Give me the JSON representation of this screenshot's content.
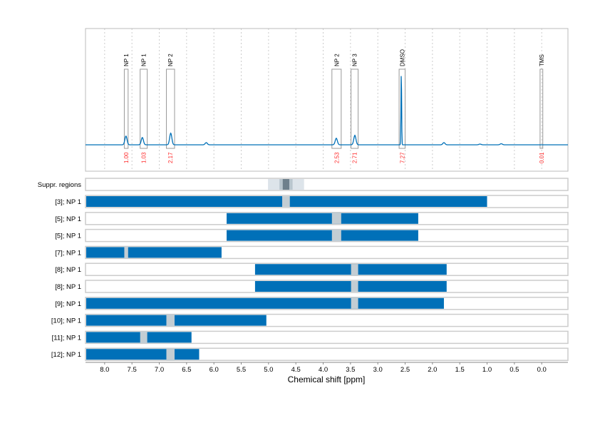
{
  "chart_data": {
    "type": "nmr-spectrum-with-range-bars",
    "xlabel": "Chemical shift [ppm]",
    "xlim": [
      8.35,
      -0.48
    ],
    "x_reversed": true,
    "x_ticks": [
      8.0,
      7.5,
      7.0,
      6.5,
      6.0,
      5.5,
      5.0,
      4.5,
      4.0,
      3.5,
      3.0,
      2.5,
      2.0,
      1.5,
      1.0,
      0.5,
      0.0
    ],
    "x_tick_labels": [
      "8.0",
      "7.5",
      "7.0",
      "6.5",
      "6.0",
      "5.5",
      "5.0",
      "4.5",
      "4.0",
      "3.5",
      "3.0",
      "2.5",
      "2.0",
      "1.5",
      "1.0",
      "0.5",
      "0.0"
    ],
    "grid": "vertical dotted",
    "colors": {
      "spectrum": "#0070b8",
      "bar": "#0070b8",
      "gap": "#c3cdd3",
      "integral": "#ff2a2a",
      "region_box": "#999999",
      "suppr_light": "#dde4ea",
      "suppr_mid": "#b9c6ce",
      "suppr_dark": "#6e808c"
    },
    "spectrum_peaks": [
      {
        "ppm": 7.61,
        "intensity": 12
      },
      {
        "ppm": 7.31,
        "intensity": 10
      },
      {
        "ppm": 6.79,
        "intensity": 16
      },
      {
        "ppm": 6.14,
        "intensity": 3
      },
      {
        "ppm": 3.76,
        "intensity": 9
      },
      {
        "ppm": 3.42,
        "intensity": 13
      },
      {
        "ppm": 2.57,
        "intensity": 100
      },
      {
        "ppm": 1.79,
        "intensity": 3
      },
      {
        "ppm": 1.13,
        "intensity": 1
      },
      {
        "ppm": 0.74,
        "intensity": 1.5
      }
    ],
    "regions": [
      {
        "label": "NP 1",
        "from": 7.64,
        "to": 7.57,
        "integral": "1.00"
      },
      {
        "label": "NP 1",
        "from": 7.35,
        "to": 7.22,
        "integral": "1.03"
      },
      {
        "label": "NP 2",
        "from": 6.87,
        "to": 6.72,
        "integral": "2.17"
      },
      {
        "label": "NP 2",
        "from": 3.84,
        "to": 3.67,
        "integral": "2.53"
      },
      {
        "label": "NP 3",
        "from": 3.49,
        "to": 3.36,
        "integral": "2.71"
      },
      {
        "label": "DMSO",
        "from": 2.61,
        "to": 2.5,
        "integral": "7.27"
      },
      {
        "label": "TMS",
        "from": 0.03,
        "to": -0.02,
        "integral": "0.01"
      }
    ],
    "suppressed_regions": {
      "label": "Suppr. regions",
      "bands": [
        {
          "from": 5.01,
          "to": 4.35,
          "level": "light"
        },
        {
          "from": 4.8,
          "to": 4.56,
          "level": "mid"
        },
        {
          "from": 4.74,
          "to": 4.62,
          "level": "dark"
        }
      ]
    },
    "range_rows": [
      {
        "label": "[3]; NP 1",
        "from": 8.35,
        "to": 1.0,
        "gap": [
          4.75,
          4.61
        ]
      },
      {
        "label": "[5]; NP 1",
        "from": 5.78,
        "to": 2.26,
        "gap": [
          3.84,
          3.67
        ]
      },
      {
        "label": "[5]; NP 1",
        "from": 5.78,
        "to": 2.26,
        "gap": [
          3.84,
          3.67
        ]
      },
      {
        "label": "[7]; NP 1",
        "from": 8.35,
        "to": 5.86,
        "gap": [
          7.64,
          7.57
        ]
      },
      {
        "label": "[8]; NP 1",
        "from": 5.26,
        "to": 1.74,
        "gap": [
          3.49,
          3.36
        ]
      },
      {
        "label": "[8]; NP 1",
        "from": 5.26,
        "to": 1.74,
        "gap": [
          3.49,
          3.36
        ]
      },
      {
        "label": "[9]; NP 1",
        "from": 8.35,
        "to": 1.79,
        "gap": [
          3.49,
          3.36
        ]
      },
      {
        "label": "[10]; NP 1",
        "from": 8.35,
        "to": 5.04,
        "gap": [
          6.87,
          6.72
        ]
      },
      {
        "label": "[11]; NP 1",
        "from": 8.35,
        "to": 6.41,
        "gap": [
          7.35,
          7.22
        ]
      },
      {
        "label": "[12]; NP 1",
        "from": 8.35,
        "to": 6.27,
        "gap": [
          6.87,
          6.72
        ]
      }
    ]
  }
}
